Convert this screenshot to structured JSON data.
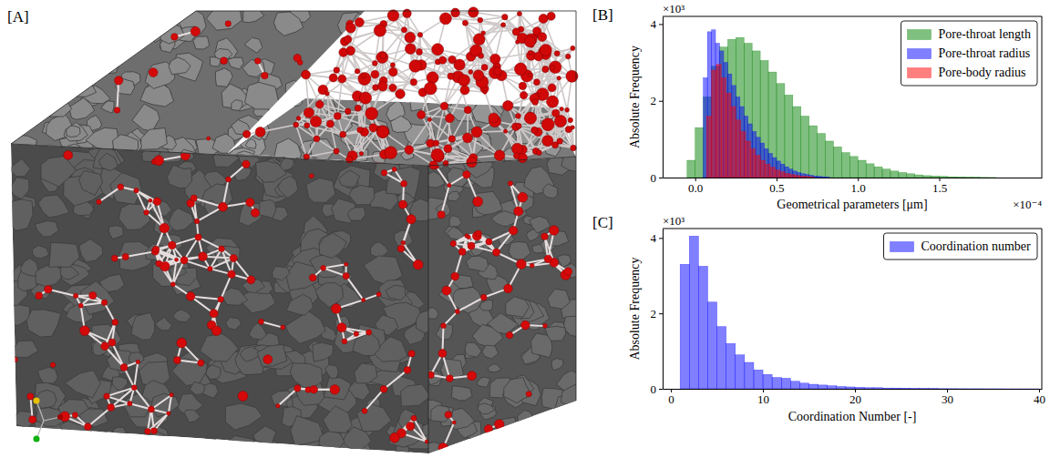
{
  "panel_a": {
    "label": "[A]"
  },
  "chart_data": [
    {
      "type": "histogram",
      "x_label": "Geometrical parameters [μm]",
      "y_label": "Absolute Frequency",
      "annotations": {
        "panel": "[B]",
        "y_multiplier": "×10³",
        "x_multiplier": "×10⁻⁴"
      },
      "xlim": [
        -0.2,
        2.13
      ],
      "ylim": [
        0,
        4.2
      ],
      "xticks": [
        {
          "value": 0,
          "label": "0.0"
        },
        0.5,
        {
          "value": 1,
          "label": "1.0"
        },
        1.5
      ],
      "yticks": [
        0,
        2,
        4
      ],
      "legend": "upper right",
      "series": [
        {
          "name": "Pore-throat length",
          "color": "green",
          "bins": [
            -0.05,
            0,
            0.05,
            0.1,
            0.15,
            0.2,
            0.25,
            0.3,
            0.35,
            0.4,
            0.45,
            0.5,
            0.55,
            0.6,
            0.65,
            0.7,
            0.75,
            0.8,
            0.85,
            0.9,
            0.95,
            1,
            1.05,
            1.1,
            1.15,
            1.2,
            1.25,
            1.3,
            1.35,
            1.4,
            1.45,
            1.5,
            1.55,
            1.6,
            1.65,
            1.7,
            1.75,
            1.8,
            1.85
          ],
          "values": [
            0.45,
            1.3,
            2.1,
            2.9,
            3.4,
            3.6,
            3.65,
            3.5,
            3.3,
            3.05,
            2.75,
            2.45,
            2.15,
            1.85,
            1.6,
            1.35,
            1.15,
            0.95,
            0.8,
            0.65,
            0.55,
            0.45,
            0.36,
            0.28,
            0.22,
            0.17,
            0.13,
            0.1,
            0.07,
            0.05,
            0.04,
            0.03,
            0.02,
            0.015,
            0.01,
            0.008,
            0.005,
            0.003
          ]
        },
        {
          "name": "Pore-throat radius",
          "color": "blue",
          "bins": [
            0.05,
            0.075,
            0.1,
            0.125,
            0.15,
            0.175,
            0.2,
            0.225,
            0.25,
            0.275,
            0.3,
            0.325,
            0.35,
            0.375,
            0.4,
            0.425,
            0.45,
            0.475,
            0.5,
            0.525,
            0.55,
            0.575,
            0.6,
            0.625,
            0.65,
            0.675,
            0.7,
            0.725,
            0.75,
            0.775,
            0.8,
            0.825
          ],
          "values": [
            2.6,
            3.8,
            3.85,
            3.5,
            3.3,
            3.0,
            2.7,
            2.4,
            2.1,
            1.85,
            1.6,
            1.4,
            1.2,
            1.05,
            0.9,
            0.75,
            0.63,
            0.52,
            0.43,
            0.35,
            0.28,
            0.22,
            0.17,
            0.13,
            0.1,
            0.08,
            0.06,
            0.04,
            0.03,
            0.02,
            0.01
          ]
        },
        {
          "name": "Pore-body radius",
          "color": "red",
          "bins": [
            0.07,
            0.1,
            0.13,
            0.16,
            0.19,
            0.22,
            0.25,
            0.28,
            0.31,
            0.34,
            0.37,
            0.4,
            0.43,
            0.46,
            0.49,
            0.52,
            0.55,
            0.58,
            0.61,
            0.64,
            0.67,
            0.7,
            0.73
          ],
          "values": [
            1.6,
            2.8,
            2.95,
            2.6,
            2.2,
            1.85,
            1.5,
            1.2,
            0.95,
            0.75,
            0.58,
            0.45,
            0.35,
            0.27,
            0.2,
            0.15,
            0.11,
            0.08,
            0.06,
            0.04,
            0.03,
            0.02
          ]
        }
      ]
    },
    {
      "type": "histogram",
      "x_label": "Coordination Number [-]",
      "y_label": "Absolute Frequency",
      "annotations": {
        "panel": "[C]",
        "y_multiplier": "×10³"
      },
      "xlim": [
        -0.9,
        40.3
      ],
      "ylim": [
        0,
        4.25
      ],
      "xticks": [
        0,
        10,
        20,
        30,
        40
      ],
      "yticks": [
        0,
        2,
        4
      ],
      "legend": "upper right",
      "series": [
        {
          "name": "Coordination number",
          "color": "blue",
          "bins": [
            1,
            2,
            3,
            4,
            5,
            6,
            7,
            8,
            9,
            10,
            11,
            12,
            13,
            14,
            15,
            16,
            17,
            18,
            19,
            20,
            21,
            22,
            23,
            24,
            25,
            26,
            27,
            28,
            29,
            30,
            31,
            32,
            33,
            34,
            35,
            36,
            37,
            38,
            39,
            40
          ],
          "values": [
            3.3,
            4.05,
            3.25,
            2.3,
            1.65,
            1.2,
            0.9,
            0.7,
            0.5,
            0.38,
            0.3,
            0.28,
            0.2,
            0.15,
            0.12,
            0.1,
            0.08,
            0.06,
            0.05,
            0.04,
            0.03,
            0.03,
            0.02,
            0.02,
            0.015,
            0.01,
            0.01,
            0.008,
            0.006,
            0.005,
            0.004,
            0.003,
            0.003,
            0.002,
            0.002,
            0.001,
            0.001,
            0.001,
            0.001
          ]
        }
      ]
    }
  ]
}
